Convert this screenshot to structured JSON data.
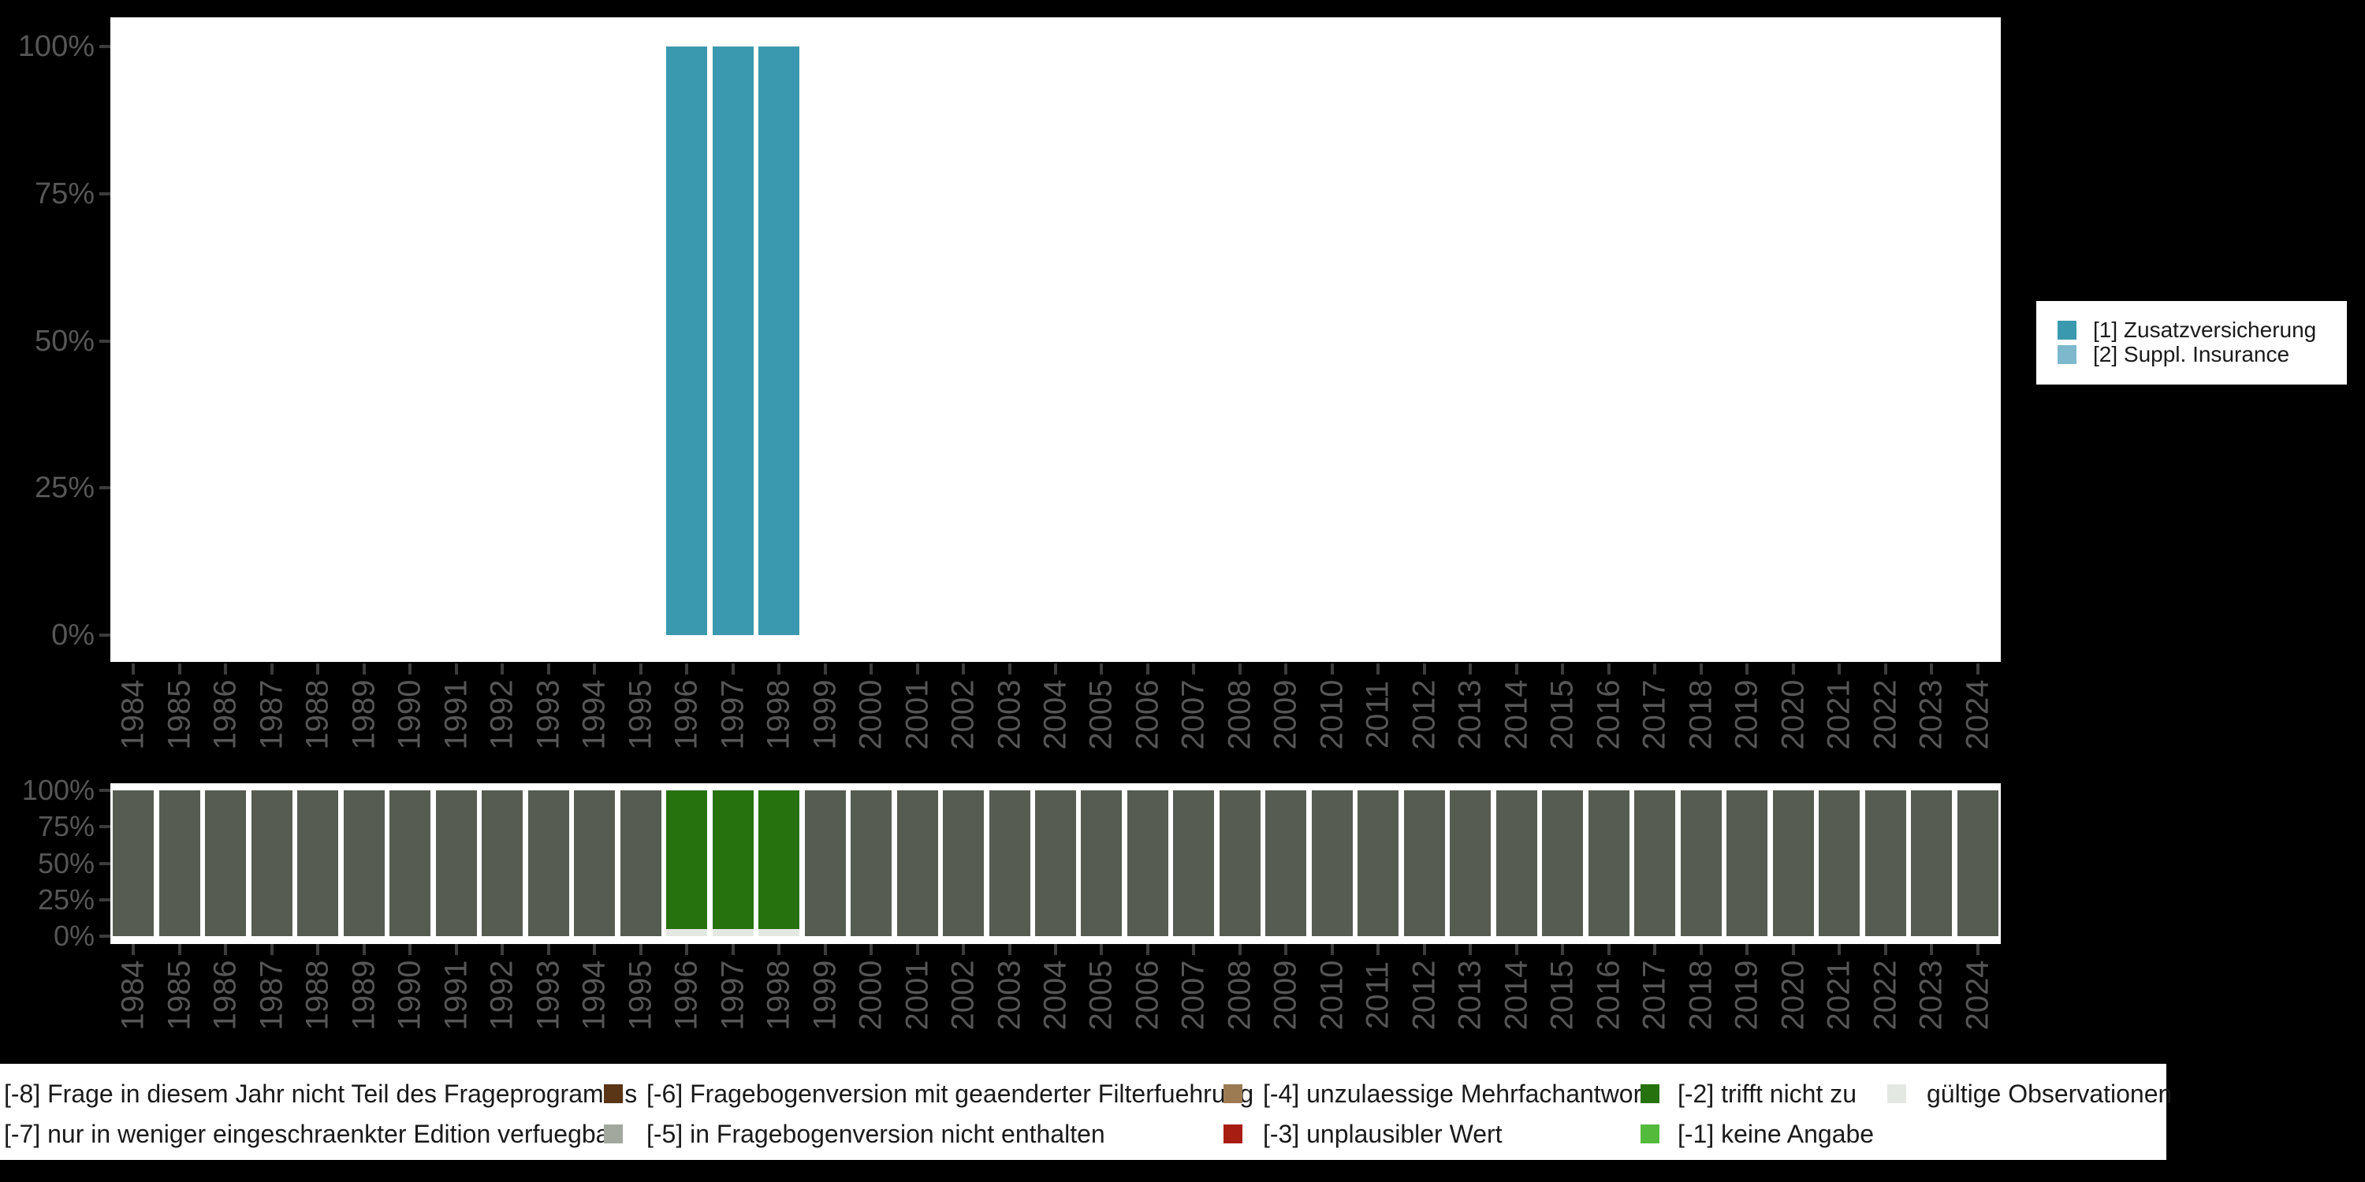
{
  "background": "#000000",
  "panel_color": "#ffffff",
  "axis": {
    "text_color": "#565656",
    "tick_color": "#3c3c3c"
  },
  "chart_data": [
    {
      "type": "bar",
      "stacked": true,
      "title": "",
      "xlabel": "",
      "ylabel": "",
      "ylim": [
        0,
        100
      ],
      "grid": false,
      "y_ticks": [
        "100%",
        "75%",
        "50%",
        "25%",
        "0%"
      ],
      "categories": [
        "1984",
        "1985",
        "1986",
        "1987",
        "1988",
        "1989",
        "1990",
        "1991",
        "1992",
        "1993",
        "1994",
        "1995",
        "1996",
        "1997",
        "1998",
        "1999",
        "2000",
        "2001",
        "2002",
        "2003",
        "2004",
        "2005",
        "2006",
        "2007",
        "2008",
        "2009",
        "2010",
        "2011",
        "2012",
        "2013",
        "2014",
        "2015",
        "2016",
        "2017",
        "2018",
        "2019",
        "2020",
        "2021",
        "2022",
        "2023",
        "2024"
      ],
      "series": [
        {
          "name": "[1] Zusatzversicherung",
          "color": "#3a99ae",
          "values": [
            0,
            0,
            0,
            0,
            0,
            0,
            0,
            0,
            0,
            0,
            0,
            0,
            100,
            100,
            100,
            0,
            0,
            0,
            0,
            0,
            0,
            0,
            0,
            0,
            0,
            0,
            0,
            0,
            0,
            0,
            0,
            0,
            0,
            0,
            0,
            0,
            0,
            0,
            0,
            0,
            0
          ]
        },
        {
          "name": "[2] Suppl. Insurance",
          "color": "#7db8cc",
          "values": [
            0,
            0,
            0,
            0,
            0,
            0,
            0,
            0,
            0,
            0,
            0,
            0,
            0,
            0,
            0,
            0,
            0,
            0,
            0,
            0,
            0,
            0,
            0,
            0,
            0,
            0,
            0,
            0,
            0,
            0,
            0,
            0,
            0,
            0,
            0,
            0,
            0,
            0,
            0,
            0,
            0
          ]
        }
      ]
    },
    {
      "type": "bar",
      "stacked": true,
      "title": "",
      "xlabel": "",
      "ylabel": "",
      "ylim": [
        0,
        100
      ],
      "grid": false,
      "y_ticks": [
        "100%",
        "75%",
        "50%",
        "25%",
        "0%"
      ],
      "categories": [
        "1984",
        "1985",
        "1986",
        "1987",
        "1988",
        "1989",
        "1990",
        "1991",
        "1992",
        "1993",
        "1994",
        "1995",
        "1996",
        "1997",
        "1998",
        "1999",
        "2000",
        "2001",
        "2002",
        "2003",
        "2004",
        "2005",
        "2006",
        "2007",
        "2008",
        "2009",
        "2010",
        "2011",
        "2012",
        "2013",
        "2014",
        "2015",
        "2016",
        "2017",
        "2018",
        "2019",
        "2020",
        "2021",
        "2022",
        "2023",
        "2024"
      ],
      "series": [
        {
          "name": "[-8] Frage in diesem Jahr nicht Teil des Frageprogramms",
          "color": "#565c52",
          "values": [
            100,
            100,
            100,
            100,
            100,
            100,
            100,
            100,
            100,
            100,
            100,
            100,
            0,
            0,
            0,
            100,
            100,
            100,
            100,
            100,
            100,
            100,
            100,
            100,
            100,
            100,
            100,
            100,
            100,
            100,
            100,
            100,
            100,
            100,
            100,
            100,
            100,
            100,
            100,
            100,
            100
          ]
        },
        {
          "name": "[-2] trifft nicht zu",
          "color": "#26720e",
          "values": [
            0,
            0,
            0,
            0,
            0,
            0,
            0,
            0,
            0,
            0,
            0,
            0,
            95,
            95,
            95,
            0,
            0,
            0,
            0,
            0,
            0,
            0,
            0,
            0,
            0,
            0,
            0,
            0,
            0,
            0,
            0,
            0,
            0,
            0,
            0,
            0,
            0,
            0,
            0,
            0,
            0
          ]
        },
        {
          "name": "gültige Observationen",
          "color": "#e4e8e2",
          "values": [
            0,
            0,
            0,
            0,
            0,
            0,
            0,
            0,
            0,
            0,
            0,
            0,
            5,
            5,
            5,
            0,
            0,
            0,
            0,
            0,
            0,
            0,
            0,
            0,
            0,
            0,
            0,
            0,
            0,
            0,
            0,
            0,
            0,
            0,
            0,
            0,
            0,
            0,
            0,
            0,
            0
          ]
        }
      ]
    }
  ],
  "legend_right": {
    "items": [
      {
        "label": "[1] Zusatzversicherung",
        "color": "#3a99ae"
      },
      {
        "label": "[2] Suppl. Insurance",
        "color": "#7db8cc"
      }
    ]
  },
  "legend_bottom": {
    "items": [
      {
        "label": "[-8] Frage in diesem Jahr nicht Teil des Frageprogramms",
        "color": null,
        "col": 1,
        "row": 1
      },
      {
        "label": "[-7] nur in weniger eingeschraenkter Edition verfuegbar",
        "color": null,
        "col": 1,
        "row": 2
      },
      {
        "label": "[-6] Fragebogenversion mit geaenderter Filterfuehrung",
        "color": "#5a3617",
        "col": 2,
        "row": 1
      },
      {
        "label": "[-5] in Fragebogenversion nicht enthalten",
        "color": "#a2a89e",
        "col": 2,
        "row": 2
      },
      {
        "label": "[-4] unzulaessige Mehrfachantwort",
        "color": "#9c7b53",
        "col": 3,
        "row": 1
      },
      {
        "label": "[-3] unplausibler Wert",
        "color": "#a81d11",
        "col": 3,
        "row": 2
      },
      {
        "label": "[-2] trifft nicht zu",
        "color": "#26720e",
        "col": 4,
        "row": 1
      },
      {
        "label": "[-1] keine Angabe",
        "color": "#54ba3c",
        "col": 4,
        "row": 2
      },
      {
        "label": "gültige Observationen",
        "color": "#e4e8e2",
        "col": 5,
        "row": 1
      }
    ]
  }
}
